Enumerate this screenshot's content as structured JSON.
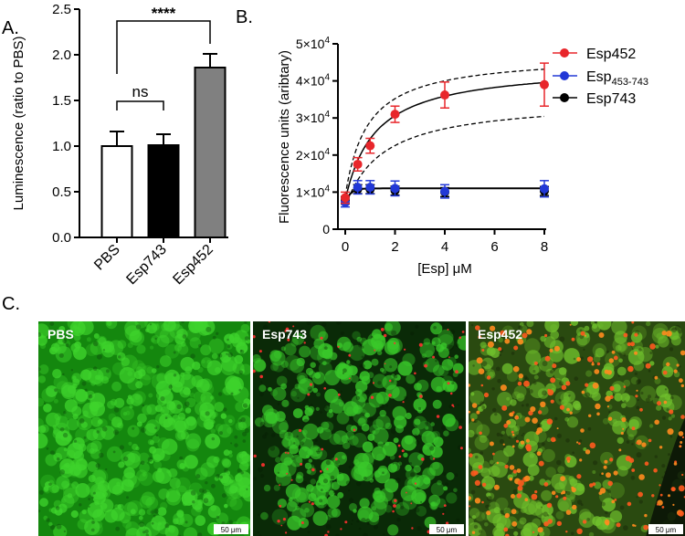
{
  "panels": {
    "a": "A.",
    "b": "B.",
    "c": "C."
  },
  "chart_data": [
    {
      "type": "bar",
      "ylabel": "Luminescence (ratio to PBS)",
      "categories": [
        "PBS",
        "Esp743",
        "Esp452"
      ],
      "values": [
        1.0,
        1.01,
        1.86
      ],
      "errors": [
        0.16,
        0.12,
        0.15
      ],
      "colors": [
        "#ffffff",
        "#000000",
        "#808080"
      ],
      "yticks": [
        "0.0",
        "0.5",
        "1.0",
        "1.5",
        "2.0",
        "2.5"
      ],
      "ylim": [
        0,
        2.5
      ],
      "annotations": [
        {
          "text": "ns",
          "from": "PBS",
          "to": "Esp743"
        },
        {
          "text": "****",
          "from": "PBS",
          "to": "Esp452"
        }
      ]
    },
    {
      "type": "scatter",
      "xlabel": "[Esp] μM",
      "ylabel": "Fluorescence units (aribtary)",
      "xticks": [
        "0",
        "2",
        "4",
        "6",
        "8"
      ],
      "xlim": [
        0,
        8
      ],
      "ylim": [
        0,
        50000
      ],
      "ytick_labels": [
        {
          "base": "0",
          "exp": ""
        },
        {
          "base": "1×10",
          "exp": "4"
        },
        {
          "base": "2×10",
          "exp": "4"
        },
        {
          "base": "3×10",
          "exp": "4"
        },
        {
          "base": "4×10",
          "exp": "4"
        },
        {
          "base": "5×10",
          "exp": "4"
        }
      ],
      "legend_position": "top-right",
      "series": [
        {
          "name": "Esp452",
          "color": "#e8262b",
          "x": [
            0,
            0.5,
            1,
            2,
            4,
            8
          ],
          "y": [
            8500,
            17500,
            22500,
            31000,
            36200,
            39000
          ],
          "err": [
            1500,
            1800,
            2000,
            2200,
            3500,
            5800
          ],
          "fit": "hyperbolic"
        },
        {
          "name_base": "Esp",
          "name_sub": "453-743",
          "color": "#2238d6",
          "x": [
            0,
            0.5,
            1,
            2,
            4,
            8
          ],
          "y": [
            7200,
            11300,
            11300,
            11000,
            10200,
            10900
          ],
          "err": [
            1200,
            1800,
            1800,
            2000,
            1800,
            2200
          ],
          "fit": "flat"
        },
        {
          "name": "Esp743",
          "color": "#000000",
          "x": [
            0,
            0.5,
            1,
            2,
            4,
            8
          ],
          "y": [
            7800,
            10800,
            10800,
            10400,
            10000,
            10300
          ],
          "err": [
            1000,
            1200,
            1200,
            1200,
            1200,
            1200
          ],
          "fit": "flat"
        }
      ]
    }
  ],
  "micrographs": [
    {
      "label": "PBS",
      "scale": "50 μm",
      "bg": "#14870e",
      "green": "#3ed32c",
      "dark": "#0a3a08",
      "red_density": 0
    },
    {
      "label": "Esp743",
      "scale": "50 μm",
      "bg": "#0a2a07",
      "green": "#39c82a",
      "dark": "#061a04",
      "red_density": 1
    },
    {
      "label": "Esp452",
      "scale": "50 μm",
      "bg": "#2a4a10",
      "green": "#6fbf2c",
      "dark": "#101a06",
      "red_density": 2
    }
  ]
}
